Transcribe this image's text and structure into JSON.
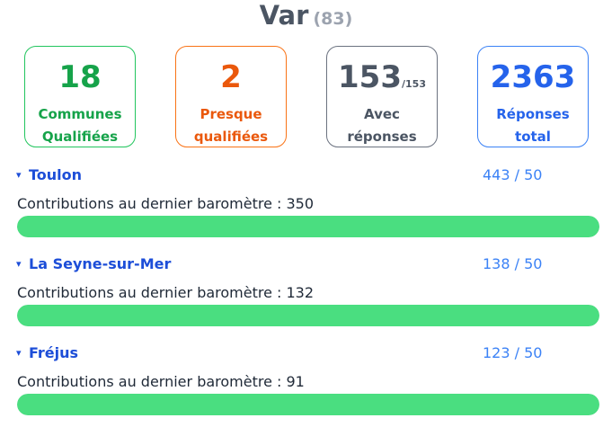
{
  "header": {
    "title": "Var",
    "code": "(83)"
  },
  "stats": [
    {
      "value": "18",
      "suffix": "",
      "line1": "Communes",
      "line2": "Qualifiées",
      "color": "#16a34a"
    },
    {
      "value": "2",
      "suffix": "",
      "line1": "Presque",
      "line2": "qualifiées",
      "color": "#ea580c"
    },
    {
      "value": "153",
      "suffix": "/153",
      "line1": "Avec",
      "line2": "réponses",
      "color": "#4b5563"
    },
    {
      "value": "2363",
      "suffix": "",
      "line1": "Réponses",
      "line2": "total",
      "color": "#2563eb"
    }
  ],
  "cities": [
    {
      "caret": "▾",
      "name": "Toulon",
      "ratio": "443 / 50",
      "contrib_label": "Contributions au dernier baromètre : 350",
      "progress": 1.0
    },
    {
      "caret": "▾",
      "name": "La Seyne-sur-Mer",
      "ratio": "138 / 50",
      "contrib_label": "Contributions au dernier baromètre : 132",
      "progress": 1.0
    },
    {
      "caret": "▾",
      "name": "Fréjus",
      "ratio": "123 / 50",
      "contrib_label": "Contributions au dernier baromètre : 91",
      "progress": 1.0
    }
  ],
  "colors": {
    "progress_fill": "#4ade80",
    "link": "#1d4ed8",
    "ratio": "#3b82f6"
  }
}
